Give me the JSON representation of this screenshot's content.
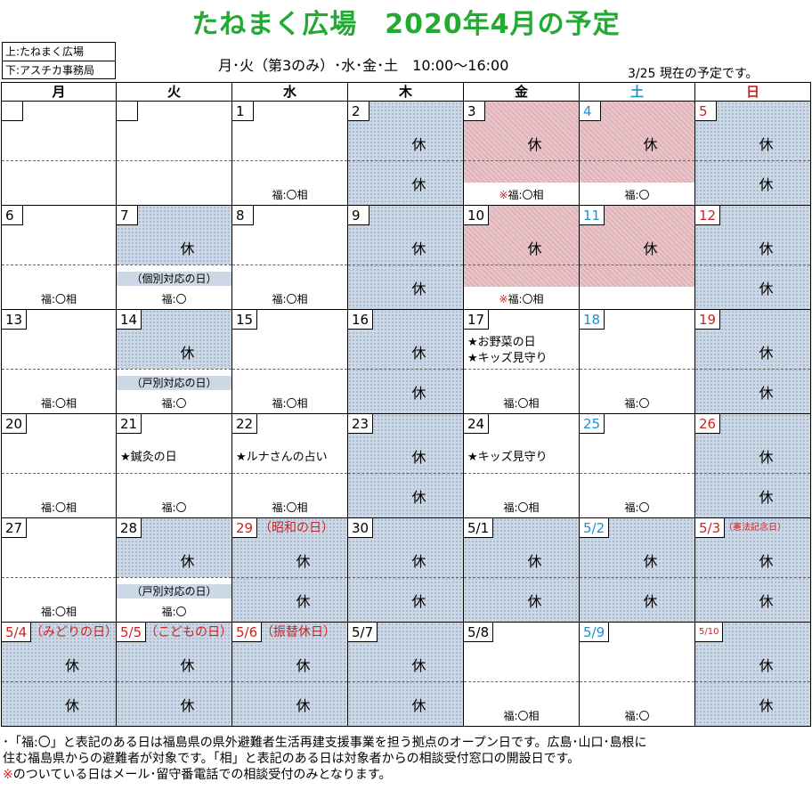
{
  "title": "たねまく広場　2020年4月の予定",
  "corner": {
    "top": "上:たねまく広場",
    "bottom": "下:アスチカ事務局"
  },
  "hours": "月･火（第3のみ）･水･金･土　10:00～16:00",
  "as_of": "3/25 現在の予定です。",
  "colors": {
    "title": "#22aa33",
    "saturday": "#1e90d0",
    "sunday": "#cc2222",
    "closed_shade": "#cdd8e6",
    "phone_only_shade": "#e8c4c8"
  },
  "weekdays": [
    {
      "label": "月",
      "color": "#000000"
    },
    {
      "label": "火",
      "color": "#000000"
    },
    {
      "label": "水",
      "color": "#000000"
    },
    {
      "label": "木",
      "color": "#000000"
    },
    {
      "label": "金",
      "color": "#000000"
    },
    {
      "label": "土",
      "color": "#1e90d0"
    },
    {
      "label": "日",
      "color": "#cc2222"
    }
  ],
  "weeks": [
    [
      {
        "day": "",
        "top": "",
        "bottom": "",
        "note": "",
        "label": ""
      },
      {
        "day": "",
        "top": "",
        "bottom": "",
        "note": "",
        "label": ""
      },
      {
        "day": "1",
        "top": "",
        "bottom": "",
        "label": "福:〇相",
        "events": []
      },
      {
        "day": "2",
        "top": "休",
        "bottom": "休",
        "label": ""
      },
      {
        "day": "3",
        "top": "休",
        "bottom": "",
        "label": "※福:〇相",
        "top_shade": "pink",
        "bottom_shade": "pink"
      },
      {
        "day": "4",
        "top": "休",
        "bottom": "",
        "label": "福:〇",
        "top_shade": "pink",
        "bottom_shade": "pink",
        "color": "#1e90d0"
      },
      {
        "day": "5",
        "top": "休",
        "bottom": "休",
        "label": "",
        "color": "#cc2222"
      }
    ],
    [
      {
        "day": "6",
        "top": "",
        "bottom": "",
        "label": "福:〇相"
      },
      {
        "day": "7",
        "top": "休",
        "bottom": "",
        "note": "（個別対応の日）",
        "label": "福:〇"
      },
      {
        "day": "8",
        "top": "",
        "bottom": "",
        "label": "福:〇相"
      },
      {
        "day": "9",
        "top": "休",
        "bottom": "休",
        "label": ""
      },
      {
        "day": "10",
        "top": "休",
        "bottom": "",
        "label": "※福:〇相",
        "top_shade": "pink",
        "bottom_shade": "pink"
      },
      {
        "day": "11",
        "top": "休",
        "bottom": "",
        "label": "",
        "top_shade": "pink",
        "bottom_shade": "pink",
        "color": "#1e90d0"
      },
      {
        "day": "12",
        "top": "休",
        "bottom": "休",
        "label": "",
        "color": "#cc2222"
      }
    ],
    [
      {
        "day": "13",
        "top": "",
        "bottom": "",
        "label": "福:〇相"
      },
      {
        "day": "14",
        "top": "休",
        "bottom": "",
        "note": "（戸別対応の日）",
        "label": "福:〇"
      },
      {
        "day": "15",
        "top": "",
        "bottom": "",
        "label": "福:〇相"
      },
      {
        "day": "16",
        "top": "休",
        "bottom": "休",
        "label": ""
      },
      {
        "day": "17",
        "top": "",
        "bottom": "",
        "label": "福:〇相",
        "events": [
          "★お野菜の日",
          "★キッズ見守り"
        ]
      },
      {
        "day": "18",
        "top": "",
        "bottom": "",
        "label": "福:〇",
        "color": "#1e90d0"
      },
      {
        "day": "19",
        "top": "休",
        "bottom": "休",
        "label": "",
        "color": "#cc2222"
      }
    ],
    [
      {
        "day": "20",
        "top": "",
        "bottom": "",
        "label": "福:〇相"
      },
      {
        "day": "21",
        "top": "",
        "bottom": "",
        "label": "福:〇",
        "events": [
          "★鍼灸の日"
        ]
      },
      {
        "day": "22",
        "top": "",
        "bottom": "",
        "label": "福:〇相",
        "events": [
          "★ルナさんの占い"
        ]
      },
      {
        "day": "23",
        "top": "休",
        "bottom": "休",
        "label": ""
      },
      {
        "day": "24",
        "top": "",
        "bottom": "",
        "label": "福:〇相",
        "events": [
          "★キッズ見守り"
        ]
      },
      {
        "day": "25",
        "top": "",
        "bottom": "",
        "label": "福:〇",
        "color": "#1e90d0"
      },
      {
        "day": "26",
        "top": "休",
        "bottom": "休",
        "label": "",
        "color": "#cc2222"
      }
    ],
    [
      {
        "day": "27",
        "top": "",
        "bottom": "",
        "label": "福:〇相"
      },
      {
        "day": "28",
        "top": "休",
        "bottom": "",
        "note": "（戸別対応の日）",
        "label": "福:〇"
      },
      {
        "day": "29",
        "top": "休",
        "bottom": "休",
        "label": "",
        "color": "#cc2222",
        "holiday": "（昭和の日）"
      },
      {
        "day": "30",
        "top": "休",
        "bottom": "休",
        "label": ""
      },
      {
        "day": "5/1",
        "top": "休",
        "bottom": "休",
        "label": ""
      },
      {
        "day": "5/2",
        "top": "休",
        "bottom": "休",
        "label": "",
        "color": "#1e90d0"
      },
      {
        "day": "5/3",
        "top": "休",
        "bottom": "休",
        "label": "",
        "color": "#cc2222",
        "holiday": "（憲法記念日）",
        "holiday_small": true
      }
    ],
    [
      {
        "day": "5/4",
        "top": "休",
        "bottom": "休",
        "label": "",
        "color": "#cc2222",
        "holiday": "（みどりの日）",
        "dnum_wide": true
      },
      {
        "day": "5/5",
        "top": "休",
        "bottom": "休",
        "label": "",
        "color": "#cc2222",
        "holiday": "（こどもの日）"
      },
      {
        "day": "5/6",
        "top": "休",
        "bottom": "休",
        "label": "",
        "color": "#cc2222",
        "holiday": "（振替休日）"
      },
      {
        "day": "5/7",
        "top": "休",
        "bottom": "休",
        "label": ""
      },
      {
        "day": "5/8",
        "top": "",
        "bottom": "",
        "label": "福:〇相"
      },
      {
        "day": "5/9",
        "top": "",
        "bottom": "",
        "label": "福:〇",
        "color": "#1e90d0"
      },
      {
        "day": "5/10",
        "top": "休",
        "bottom": "休",
        "label": "",
        "color": "#cc2222",
        "dnum_small": true
      }
    ]
  ],
  "footer": {
    "line1": "･「福:〇」と表記のある日は福島県の県外避難者生活再建支援事業を担う拠点のオープン日です。広島･山口･島根に",
    "line2": "住む福島県からの避難者が対象です。「相」と表記のある日は対象者からの相談受付窓口の開設日です。",
    "line3_mark": "※",
    "line3_text": "のついている日はメール･留守番電話での相談受付のみとなります。"
  }
}
